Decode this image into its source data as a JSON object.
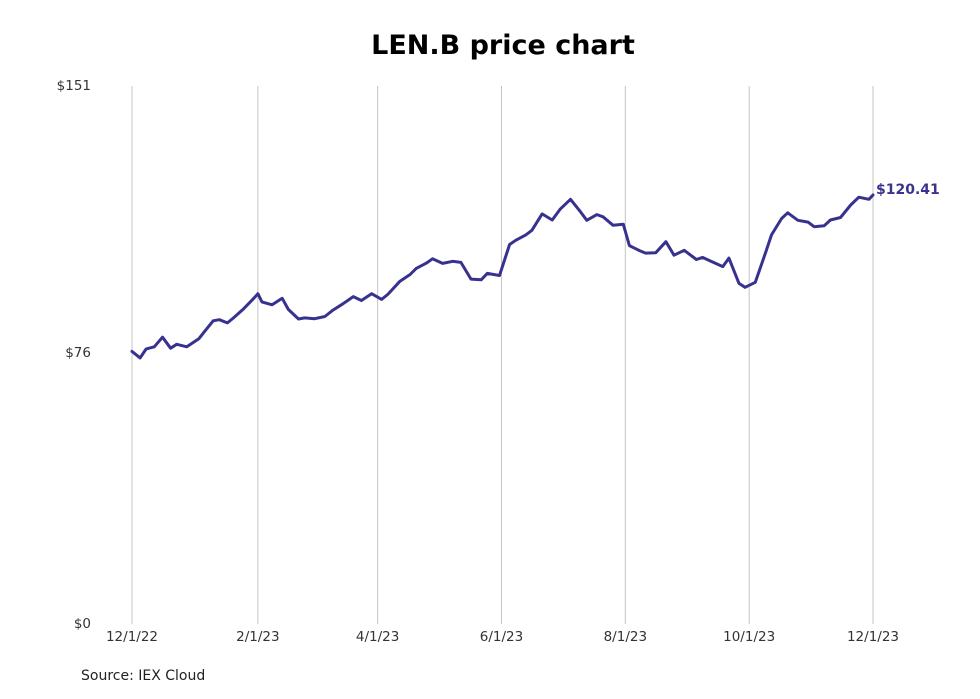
{
  "chart_data": {
    "type": "line",
    "title": "LEN.B price chart",
    "source": "Source: IEX Cloud",
    "xlabel": "",
    "ylabel": "",
    "x_ticks": [
      "12/1/22",
      "2/1/23",
      "4/1/23",
      "6/1/23",
      "8/1/23",
      "10/1/23",
      "12/1/23"
    ],
    "y_ticks": [
      "$0",
      "$76",
      "$151"
    ],
    "ylim": [
      0,
      151
    ],
    "xlim": [
      "2022-12-01",
      "2023-12-01"
    ],
    "grid": "vertical",
    "line_color": "#38328f",
    "last_value_label": "$120.41",
    "series": [
      {
        "x": [
          "2022-12-01",
          "2022-12-05",
          "2022-12-08",
          "2022-12-12",
          "2022-12-16",
          "2022-12-20",
          "2022-12-23",
          "2022-12-28",
          "2023-01-03",
          "2023-01-06",
          "2023-01-10",
          "2023-01-13",
          "2023-01-17",
          "2023-01-20",
          "2023-01-25",
          "2023-01-30",
          "2023-02-01",
          "2023-02-03",
          "2023-02-08",
          "2023-02-13",
          "2023-02-16",
          "2023-02-21",
          "2023-02-24",
          "2023-03-01",
          "2023-03-06",
          "2023-03-10",
          "2023-03-15",
          "2023-03-20",
          "2023-03-24",
          "2023-03-29",
          "2023-04-03",
          "2023-04-06",
          "2023-04-12",
          "2023-04-17",
          "2023-04-20",
          "2023-04-25",
          "2023-04-28",
          "2023-05-03",
          "2023-05-08",
          "2023-05-12",
          "2023-05-17",
          "2023-05-22",
          "2023-05-25",
          "2023-05-31",
          "2023-06-05",
          "2023-06-08",
          "2023-06-13",
          "2023-06-16",
          "2023-06-21",
          "2023-06-26",
          "2023-06-30",
          "2023-07-05",
          "2023-07-10",
          "2023-07-13",
          "2023-07-18",
          "2023-07-21",
          "2023-07-26",
          "2023-07-31",
          "2023-08-03",
          "2023-08-08",
          "2023-08-11",
          "2023-08-16",
          "2023-08-21",
          "2023-08-25",
          "2023-08-30",
          "2023-09-05",
          "2023-09-08",
          "2023-09-13",
          "2023-09-18",
          "2023-09-21",
          "2023-09-26",
          "2023-09-29",
          "2023-10-04",
          "2023-10-09",
          "2023-10-12",
          "2023-10-17",
          "2023-10-20",
          "2023-10-25",
          "2023-10-30",
          "2023-11-02",
          "2023-11-07",
          "2023-11-10",
          "2023-11-15",
          "2023-11-20",
          "2023-11-24",
          "2023-11-29",
          "2023-12-01"
        ],
        "values": [
          76.5,
          74.7,
          77.2,
          77.8,
          80.5,
          77.4,
          78.5,
          77.8,
          80.1,
          82.3,
          85.1,
          85.4,
          84.5,
          85.9,
          88.5,
          91.4,
          92.7,
          90.4,
          89.6,
          91.4,
          88.3,
          85.6,
          85.9,
          85.7,
          86.3,
          88.1,
          89.9,
          91.9,
          90.8,
          92.7,
          91.1,
          92.5,
          96.2,
          98.1,
          99.8,
          101.3,
          102.5,
          101.2,
          101.8,
          101.5,
          96.8,
          96.6,
          98.4,
          97.8,
          106.5,
          107.7,
          109.2,
          110.5,
          115.1,
          113.4,
          116.5,
          119.2,
          115.6,
          113.3,
          114.9,
          114.3,
          111.9,
          112.2,
          106.2,
          104.8,
          104.1,
          104.2,
          107.3,
          103.5,
          104.9,
          102.3,
          102.9,
          101.6,
          100.3,
          102.7,
          95.6,
          94.5,
          95.9,
          104.1,
          109.2,
          113.8,
          115.4,
          113.3,
          112.8,
          111.5,
          111.8,
          113.4,
          114.1,
          117.6,
          119.8,
          119.2,
          120.41
        ]
      }
    ]
  }
}
